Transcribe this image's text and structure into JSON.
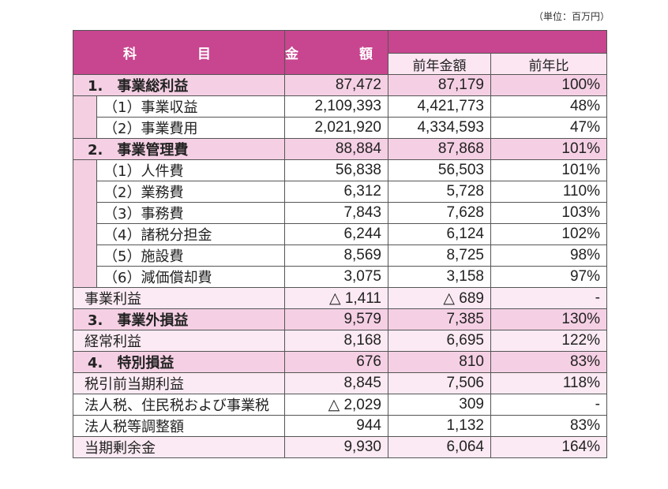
{
  "unit_note": "（単位：百万円）",
  "header": {
    "subject": "科　目",
    "amount": "金　額",
    "prev_amount": "前年金額",
    "yoy": "前年比"
  },
  "rows": [
    {
      "label": "1.　事業総利益",
      "amount": "87,472",
      "prev": "87,179",
      "ratio": "100%",
      "style": "pink",
      "bold": true
    },
    {
      "label": "（1）事業収益",
      "amount": "2,109,393",
      "prev": "4,421,773",
      "ratio": "48%",
      "style": "white",
      "sub": true
    },
    {
      "label": "（2）事業費用",
      "amount": "2,021,920",
      "prev": "4,334,593",
      "ratio": "47%",
      "style": "white",
      "sub": true
    },
    {
      "label": "2.　事業管理費",
      "amount": "88,884",
      "prev": "87,868",
      "ratio": "101%",
      "style": "pink",
      "bold": true
    },
    {
      "label": "（1）人件費",
      "amount": "56,838",
      "prev": "56,503",
      "ratio": "101%",
      "style": "white",
      "sub": true
    },
    {
      "label": "（2）業務費",
      "amount": "6,312",
      "prev": "5,728",
      "ratio": "110%",
      "style": "white",
      "sub": true
    },
    {
      "label": "（3）事務費",
      "amount": "7,843",
      "prev": "7,628",
      "ratio": "103%",
      "style": "white",
      "sub": true
    },
    {
      "label": "（4）諸税分担金",
      "amount": "6,244",
      "prev": "6,124",
      "ratio": "102%",
      "style": "white",
      "sub": true
    },
    {
      "label": "（5）施設費",
      "amount": "8,569",
      "prev": "8,725",
      "ratio": "98%",
      "style": "white",
      "sub": true
    },
    {
      "label": "（6）減価償却費",
      "amount": "3,075",
      "prev": "3,158",
      "ratio": "97%",
      "style": "white",
      "sub": true
    },
    {
      "label": "事業利益",
      "amount": "△ 1,411",
      "prev": "△ 689",
      "ratio": "-",
      "style": "light"
    },
    {
      "label": "3.　事業外損益",
      "amount": "9,579",
      "prev": "7,385",
      "ratio": "130%",
      "style": "pink",
      "bold": true
    },
    {
      "label": "経常利益",
      "amount": "8,168",
      "prev": "6,695",
      "ratio": "122%",
      "style": "light"
    },
    {
      "label": "4.　特別損益",
      "amount": "676",
      "prev": "810",
      "ratio": "83%",
      "style": "pink",
      "bold": true
    },
    {
      "label": "税引前当期利益",
      "amount": "8,845",
      "prev": "7,506",
      "ratio": "118%",
      "style": "light"
    },
    {
      "label": "法人税、住民税および事業税",
      "amount": "△ 2,029",
      "prev": "309",
      "ratio": "-",
      "style": "white"
    },
    {
      "label": "法人税等調整額",
      "amount": "944",
      "prev": "1,132",
      "ratio": "83%",
      "style": "white"
    },
    {
      "label": "当期剰余金",
      "amount": "9,930",
      "prev": "6,064",
      "ratio": "164%",
      "style": "light"
    }
  ]
}
